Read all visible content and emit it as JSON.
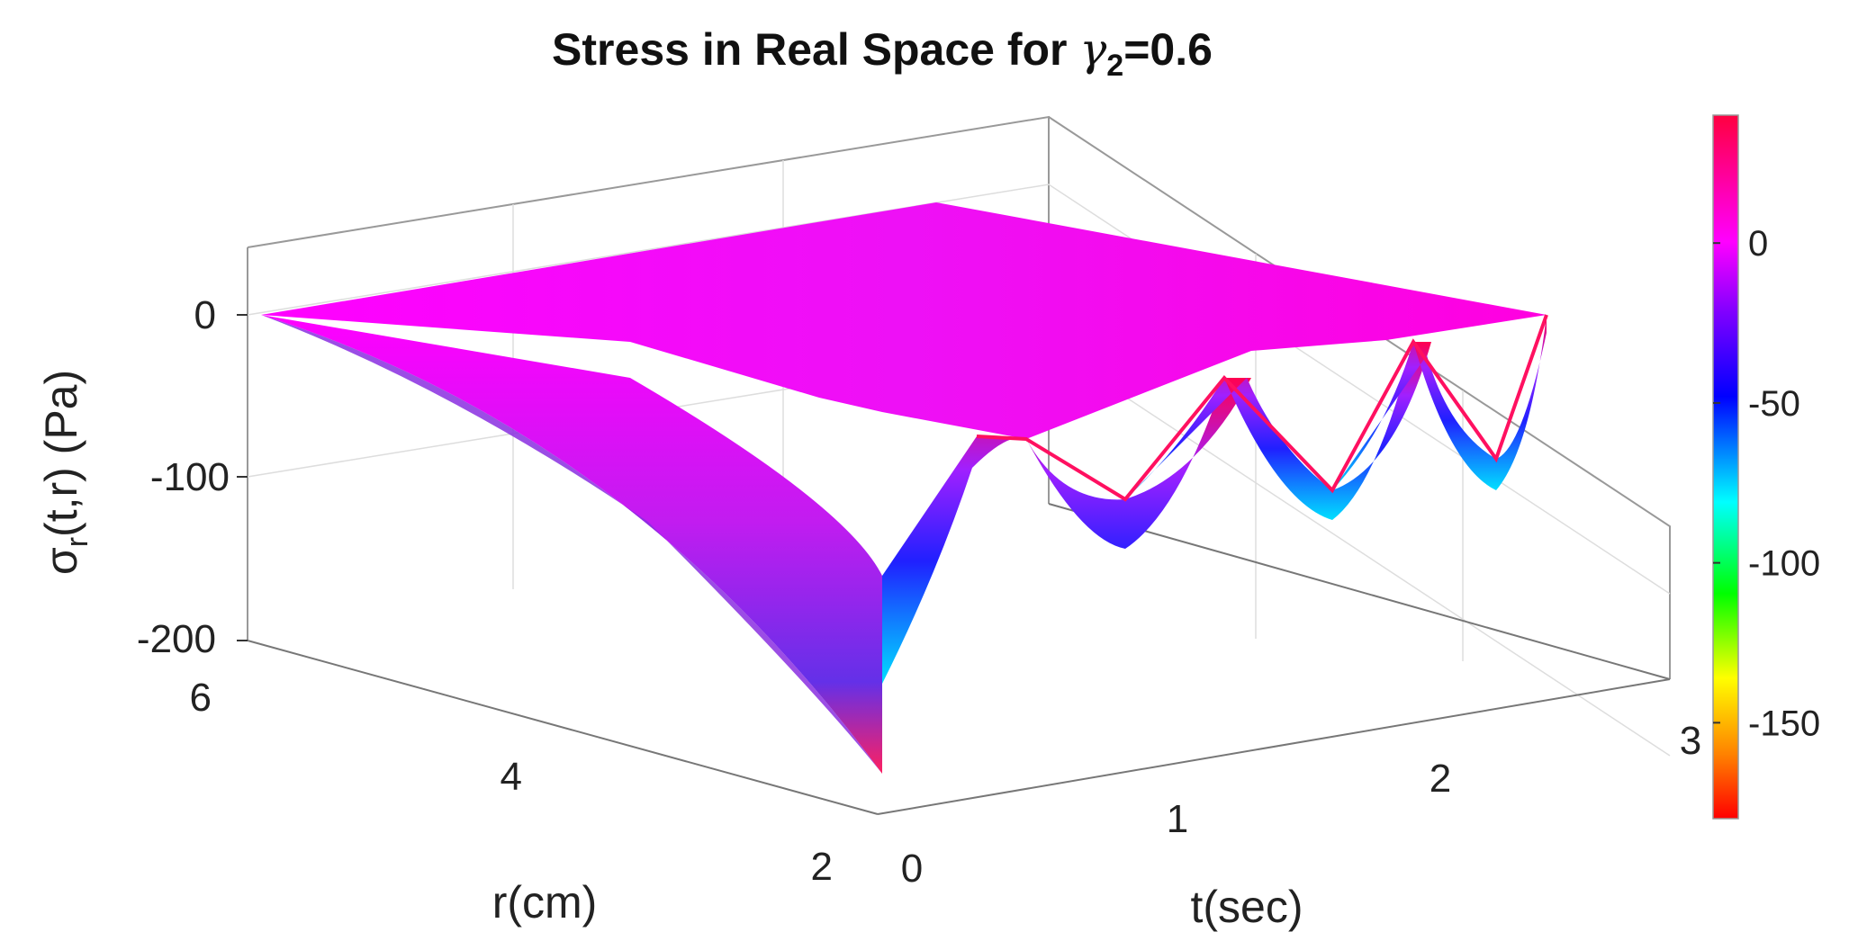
{
  "chart_data": {
    "type": "surface",
    "title_text": "Stress in Real Space for ",
    "title_symbol": "γ",
    "title_subscript": "2",
    "title_value": "=0.6",
    "xlabel": "t(sec)",
    "ylabel": "r(cm)",
    "zlabel_main": "σ",
    "zlabel_subscript": "r",
    "zlabel_rest": "(t,r) (Pa)",
    "t_range": [
      0,
      3
    ],
    "r_range": [
      2,
      6
    ],
    "z_range": [
      -200,
      50
    ],
    "t_ticks": [
      "0",
      "1",
      "2",
      "3"
    ],
    "r_ticks": [
      "2",
      "4",
      "6"
    ],
    "z_ticks": [
      "-200",
      "-100",
      "0"
    ],
    "surface_profile_at_r2": {
      "t": [
        0.0,
        0.25,
        0.5,
        0.75,
        0.95,
        1.2,
        1.45,
        1.65,
        1.9,
        2.15,
        2.35,
        2.6,
        2.85,
        3.0
      ],
      "stress": [
        -180,
        -95,
        -55,
        -32,
        -5,
        -95,
        0,
        -5,
        -95,
        0,
        -5,
        -95,
        0,
        0
      ]
    },
    "surface_edge_at_t0": {
      "r": [
        2,
        2.5,
        3,
        3.5,
        4,
        5,
        6
      ],
      "stress": [
        -180,
        -110,
        -65,
        -38,
        -22,
        -6,
        0
      ]
    },
    "colorbar": {
      "colormap": "hsv",
      "range": [
        -180,
        40
      ],
      "ticks": [
        "0",
        "-50",
        "-100",
        "-150"
      ],
      "tick_values": [
        0,
        -50,
        -100,
        -150
      ]
    },
    "grid": true
  }
}
